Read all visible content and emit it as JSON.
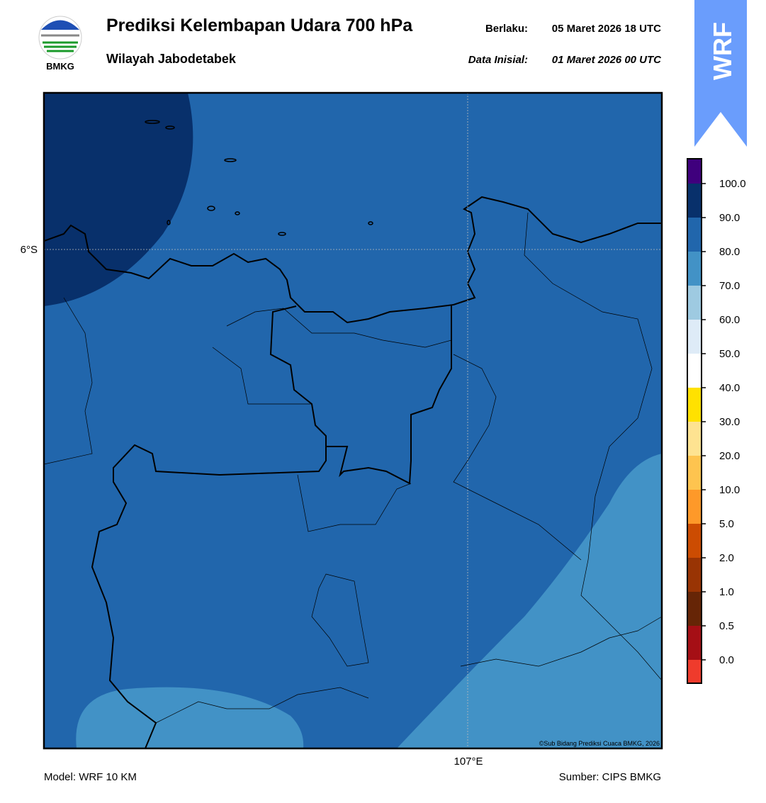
{
  "header": {
    "title": "Prediksi Kelembapan Udara 700 hPa",
    "subtitle": "Wilayah Jabodetabek",
    "valid_label": "Berlaku:",
    "valid_time": "05 Maret 2026 18 UTC",
    "init_label": "Data Inisial:",
    "init_time": "01 Maret 2026 00 UTC"
  },
  "logo": {
    "text": "BMKG"
  },
  "badge": {
    "text": "WRF"
  },
  "map": {
    "lat_label": "6°S",
    "lon_label": "107°E",
    "credit": "©Sub Bidang Prediksi Cuaca BMKG, 2026"
  },
  "colorbar": {
    "labels": [
      "100.0",
      "90.0",
      "80.0",
      "70.0",
      "60.0",
      "50.0",
      "40.0",
      "30.0",
      "20.0",
      "10.0",
      "5.0",
      "2.0",
      "1.0",
      "0.5",
      "0.0"
    ],
    "colors": [
      "#3f007d",
      "#08306b",
      "#2166ac",
      "#4292c6",
      "#9ecae1",
      "#deebf7",
      "#ffffff",
      "#ffe100",
      "#fee391",
      "#fec44f",
      "#fe9929",
      "#cc4c02",
      "#993404",
      "#662506",
      "#a50f15",
      "#ef3b2c"
    ]
  },
  "footer": {
    "model": "Model: WRF 10 KM",
    "source": "Sumber: CIPS BMKG"
  }
}
